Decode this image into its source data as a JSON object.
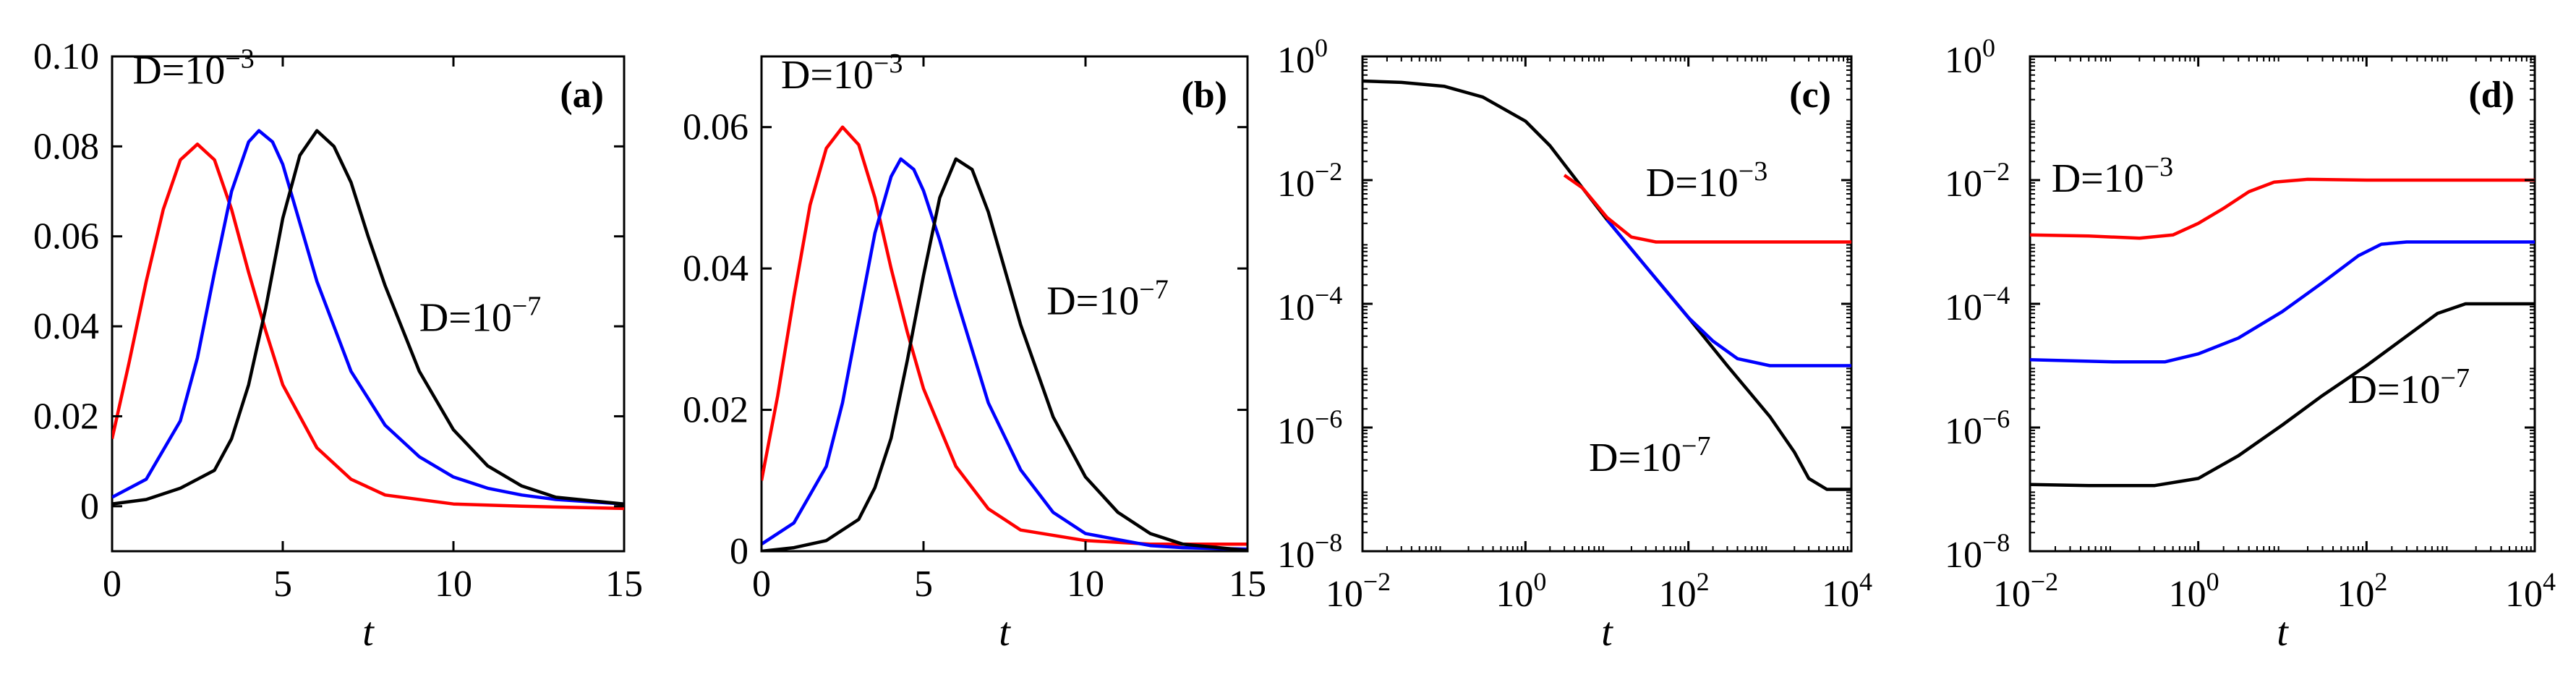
{
  "chart_data": [
    {
      "type": "line",
      "panel_label": "(a)",
      "xlabel": "t",
      "ylabel": "",
      "xscale": "linear",
      "yscale": "linear",
      "xlim": [
        0,
        15
      ],
      "ylim": [
        -0.01,
        0.1
      ],
      "xticks": [
        0,
        5,
        10,
        15
      ],
      "xtick_labels": [
        "0",
        "5",
        "10",
        "15"
      ],
      "yticks": [
        0,
        0.02,
        0.04,
        0.06,
        0.08,
        0.1
      ],
      "ytick_labels": [
        "0",
        "0.02",
        "0.04",
        "0.06",
        "0.08",
        "0.10"
      ],
      "annotations": [
        {
          "base": "D=10",
          "exp": "−3",
          "ax": 0.6,
          "ay": 0.094
        },
        {
          "base": "D=10",
          "exp": "−7",
          "ax": 9.0,
          "ay": 0.039
        }
      ],
      "series": [
        {
          "color": "#ff0000",
          "points": [
            [
              0,
              0.015
            ],
            [
              0.5,
              0.032
            ],
            [
              1,
              0.05
            ],
            [
              1.5,
              0.066
            ],
            [
              2,
              0.077
            ],
            [
              2.5,
              0.0805
            ],
            [
              3,
              0.077
            ],
            [
              3.5,
              0.066
            ],
            [
              4,
              0.052
            ],
            [
              4.5,
              0.039
            ],
            [
              5,
              0.027
            ],
            [
              6,
              0.013
            ],
            [
              7,
              0.006
            ],
            [
              8,
              0.0025
            ],
            [
              10,
              0.0005
            ],
            [
              12,
              0
            ],
            [
              15,
              -0.0005
            ]
          ]
        },
        {
          "color": "#0000ff",
          "points": [
            [
              0,
              0.002
            ],
            [
              1,
              0.006
            ],
            [
              2,
              0.019
            ],
            [
              2.5,
              0.033
            ],
            [
              3,
              0.052
            ],
            [
              3.5,
              0.07
            ],
            [
              4,
              0.081
            ],
            [
              4.3,
              0.0835
            ],
            [
              4.7,
              0.081
            ],
            [
              5,
              0.076
            ],
            [
              5.5,
              0.063
            ],
            [
              6,
              0.05
            ],
            [
              7,
              0.03
            ],
            [
              8,
              0.018
            ],
            [
              9,
              0.011
            ],
            [
              10,
              0.0065
            ],
            [
              11,
              0.004
            ],
            [
              12,
              0.0025
            ],
            [
              13,
              0.0015
            ],
            [
              15,
              0.0005
            ]
          ]
        },
        {
          "color": "#000000",
          "points": [
            [
              0,
              0.0005
            ],
            [
              1,
              0.0015
            ],
            [
              2,
              0.004
            ],
            [
              3,
              0.008
            ],
            [
              3.5,
              0.015
            ],
            [
              4,
              0.027
            ],
            [
              4.5,
              0.044
            ],
            [
              5,
              0.064
            ],
            [
              5.5,
              0.078
            ],
            [
              6,
              0.0835
            ],
            [
              6.5,
              0.08
            ],
            [
              7,
              0.072
            ],
            [
              7.5,
              0.06
            ],
            [
              8,
              0.049
            ],
            [
              9,
              0.03
            ],
            [
              10,
              0.017
            ],
            [
              11,
              0.009
            ],
            [
              12,
              0.0045
            ],
            [
              13,
              0.002
            ],
            [
              15,
              0.0005
            ]
          ]
        }
      ]
    },
    {
      "type": "line",
      "panel_label": "(b)",
      "xlabel": "t",
      "ylabel": "",
      "xscale": "linear",
      "yscale": "linear",
      "xlim": [
        0,
        15
      ],
      "ylim": [
        0,
        0.07
      ],
      "xticks": [
        0,
        5,
        10,
        15
      ],
      "xtick_labels": [
        "0",
        "5",
        "10",
        "15"
      ],
      "yticks": [
        0,
        0.02,
        0.04,
        0.06
      ],
      "ytick_labels": [
        "0",
        "0.02",
        "0.04",
        "0.06"
      ],
      "annotations": [
        {
          "base": "D=10",
          "exp": "−3",
          "ax": 0.6,
          "ay": 0.0655
        },
        {
          "base": "D=10",
          "exp": "−7",
          "ax": 8.8,
          "ay": 0.0335
        }
      ],
      "series": [
        {
          "color": "#ff0000",
          "points": [
            [
              0,
              0.01
            ],
            [
              0.5,
              0.022
            ],
            [
              1,
              0.036
            ],
            [
              1.5,
              0.049
            ],
            [
              2,
              0.057
            ],
            [
              2.5,
              0.06
            ],
            [
              3,
              0.0575
            ],
            [
              3.5,
              0.05
            ],
            [
              4,
              0.04
            ],
            [
              4.5,
              0.031
            ],
            [
              5,
              0.023
            ],
            [
              6,
              0.012
            ],
            [
              7,
              0.006
            ],
            [
              8,
              0.003
            ],
            [
              10,
              0.0015
            ],
            [
              12,
              0.001
            ],
            [
              15,
              0.001
            ]
          ]
        },
        {
          "color": "#0000ff",
          "points": [
            [
              0,
              0.001
            ],
            [
              1,
              0.004
            ],
            [
              2,
              0.012
            ],
            [
              2.5,
              0.021
            ],
            [
              3,
              0.033
            ],
            [
              3.5,
              0.045
            ],
            [
              4,
              0.053
            ],
            [
              4.3,
              0.0555
            ],
            [
              4.7,
              0.054
            ],
            [
              5,
              0.051
            ],
            [
              5.5,
              0.044
            ],
            [
              6,
              0.036
            ],
            [
              7,
              0.021
            ],
            [
              8,
              0.0115
            ],
            [
              9,
              0.0055
            ],
            [
              10,
              0.0025
            ],
            [
              12,
              0.0008
            ],
            [
              13,
              0.0005
            ],
            [
              15,
              0.0003
            ]
          ]
        },
        {
          "color": "#000000",
          "points": [
            [
              0,
              0
            ],
            [
              1,
              0.0005
            ],
            [
              2,
              0.0015
            ],
            [
              3,
              0.0045
            ],
            [
              3.5,
              0.009
            ],
            [
              4,
              0.016
            ],
            [
              4.5,
              0.027
            ],
            [
              5,
              0.039
            ],
            [
              5.5,
              0.05
            ],
            [
              6,
              0.0555
            ],
            [
              6.5,
              0.054
            ],
            [
              7,
              0.048
            ],
            [
              7.5,
              0.04
            ],
            [
              8,
              0.032
            ],
            [
              9,
              0.019
            ],
            [
              10,
              0.0105
            ],
            [
              11,
              0.0055
            ],
            [
              12,
              0.0025
            ],
            [
              13,
              0.001
            ],
            [
              15,
              0.0001
            ]
          ]
        }
      ]
    },
    {
      "type": "line",
      "panel_label": "(c)",
      "xlabel": "t",
      "ylabel": "",
      "xscale": "log",
      "yscale": "log",
      "xlim": [
        0.01,
        10000
      ],
      "ylim": [
        1e-08,
        1
      ],
      "xticks": [
        0.01,
        1,
        100,
        10000
      ],
      "xtick_labels": [
        {
          "base": "10",
          "exp": "−2"
        },
        {
          "base": "10",
          "exp": "0"
        },
        {
          "base": "10",
          "exp": "2"
        },
        {
          "base": "10",
          "exp": "4"
        }
      ],
      "yticks": [
        1e-08,
        1e-06,
        0.0001,
        0.01,
        1
      ],
      "ytick_labels": [
        {
          "base": "10",
          "exp": "−8"
        },
        {
          "base": "10",
          "exp": "−6"
        },
        {
          "base": "10",
          "exp": "−4"
        },
        {
          "base": "10",
          "exp": "−2"
        },
        {
          "base": "10",
          "exp": "0"
        }
      ],
      "annotations": [
        {
          "base": "D=10",
          "exp": "−3",
          "ax": 30,
          "ay": 0.0055
        },
        {
          "base": "D=10",
          "exp": "−7",
          "ax": 6,
          "ay": 2e-07
        }
      ],
      "series": [
        {
          "color": "#000000",
          "points": [
            [
              0.01,
              0.4
            ],
            [
              0.03,
              0.38
            ],
            [
              0.1,
              0.33
            ],
            [
              0.3,
              0.22
            ],
            [
              1,
              0.09
            ],
            [
              2,
              0.036
            ],
            [
              5,
              0.0075
            ],
            [
              10,
              0.0023
            ],
            [
              30,
              0.0004
            ],
            [
              100,
              6e-05
            ],
            [
              300,
              1e-05
            ],
            [
              1000,
              1.5e-06
            ],
            [
              2000,
              4e-07
            ],
            [
              3000,
              1.5e-07
            ],
            [
              5000,
              1e-07
            ],
            [
              10000,
              1e-07
            ]
          ]
        },
        {
          "color": "#0000ff",
          "points": [
            [
              10,
              0.0023
            ],
            [
              30,
              0.0004
            ],
            [
              100,
              6e-05
            ],
            [
              200,
              2.5e-05
            ],
            [
              400,
              1.3e-05
            ],
            [
              1000,
              1e-05
            ],
            [
              10000,
              1e-05
            ]
          ]
        },
        {
          "color": "#ff0000",
          "points": [
            [
              3,
              0.012
            ],
            [
              5,
              0.0075
            ],
            [
              10,
              0.0025
            ],
            [
              20,
              0.0012
            ],
            [
              40,
              0.001
            ],
            [
              100,
              0.001
            ],
            [
              10000,
              0.001
            ]
          ]
        }
      ]
    },
    {
      "type": "line",
      "panel_label": "(d)",
      "xlabel": "t",
      "ylabel": "",
      "xscale": "log",
      "yscale": "log",
      "xlim": [
        0.01,
        10000
      ],
      "ylim": [
        1e-08,
        1
      ],
      "xticks": [
        0.01,
        1,
        100,
        10000
      ],
      "xtick_labels": [
        {
          "base": "10",
          "exp": "−2"
        },
        {
          "base": "10",
          "exp": "0"
        },
        {
          "base": "10",
          "exp": "2"
        },
        {
          "base": "10",
          "exp": "4"
        }
      ],
      "yticks": [
        1e-08,
        1e-06,
        0.0001,
        0.01,
        1
      ],
      "ytick_labels": [
        {
          "base": "10",
          "exp": "−8"
        },
        {
          "base": "10",
          "exp": "−6"
        },
        {
          "base": "10",
          "exp": "−4"
        },
        {
          "base": "10",
          "exp": "−2"
        },
        {
          "base": "10",
          "exp": "0"
        }
      ],
      "annotations": [
        {
          "base": "D=10",
          "exp": "−3",
          "ax": 0.018,
          "ay": 0.0065
        },
        {
          "base": "D=10",
          "exp": "−7",
          "ax": 60,
          "ay": 2.5e-06
        }
      ],
      "series": [
        {
          "color": "#ff0000",
          "points": [
            [
              0.01,
              0.0013
            ],
            [
              0.05,
              0.00125
            ],
            [
              0.2,
              0.00115
            ],
            [
              0.5,
              0.0013
            ],
            [
              1,
              0.002
            ],
            [
              2,
              0.0035
            ],
            [
              4,
              0.0065
            ],
            [
              8,
              0.0093
            ],
            [
              20,
              0.0103
            ],
            [
              100,
              0.01
            ],
            [
              10000,
              0.01
            ]
          ]
        },
        {
          "color": "#0000ff",
          "points": [
            [
              0.01,
              1.25e-05
            ],
            [
              0.1,
              1.15e-05
            ],
            [
              0.4,
              1.15e-05
            ],
            [
              1,
              1.55e-05
            ],
            [
              3,
              2.8e-05
            ],
            [
              10,
              7.5e-05
            ],
            [
              30,
              0.00022
            ],
            [
              80,
              0.0006
            ],
            [
              150,
              0.00092
            ],
            [
              300,
              0.001
            ],
            [
              10000,
              0.001
            ]
          ]
        },
        {
          "color": "#000000",
          "points": [
            [
              0.01,
              1.2e-07
            ],
            [
              0.05,
              1.15e-07
            ],
            [
              0.3,
              1.15e-07
            ],
            [
              1,
              1.5e-07
            ],
            [
              3,
              3.5e-07
            ],
            [
              10,
              1.1e-06
            ],
            [
              30,
              3.3e-06
            ],
            [
              100,
              1e-05
            ],
            [
              300,
              3e-05
            ],
            [
              700,
              7e-05
            ],
            [
              1500,
              0.0001
            ],
            [
              3000,
              0.0001
            ],
            [
              10000,
              0.0001
            ]
          ]
        }
      ]
    }
  ]
}
